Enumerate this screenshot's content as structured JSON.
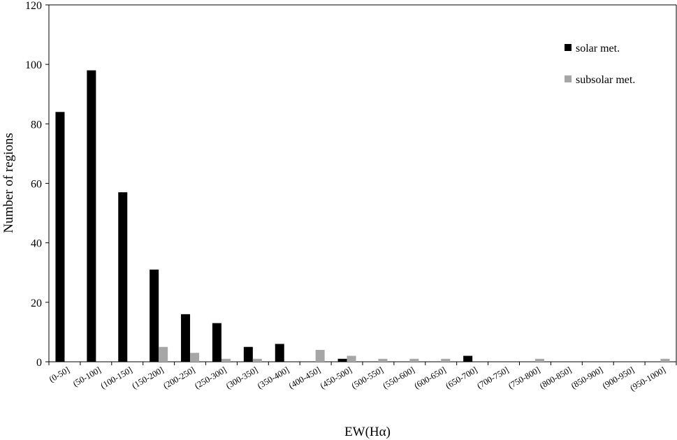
{
  "chart_data": {
    "type": "bar",
    "xlabel": "EW(Hα)",
    "ylabel": "Number of regions",
    "ylim": [
      0,
      120
    ],
    "yticks": [
      0,
      20,
      40,
      60,
      80,
      100,
      120
    ],
    "grid": false,
    "legend_position": "top-right",
    "categories": [
      "(0-50]",
      "(50-100]",
      "(100-150]",
      "(150-200]",
      "(200-250]",
      "(250-300]",
      "(300-350]",
      "(350-400]",
      "(400-450]",
      "(450-500]",
      "(500-550]",
      "(550-600]",
      "(600-650]",
      "(650-700]",
      "(700-750]",
      "(750-800]",
      "(800-850]",
      "(850-900]",
      "(900-950]",
      "(950-1000]"
    ],
    "series": [
      {
        "name": "solar met.",
        "color": "#000000",
        "values": [
          84,
          98,
          57,
          31,
          16,
          13,
          5,
          6,
          0,
          1,
          0,
          0,
          0,
          2,
          0,
          0,
          0,
          0,
          0,
          0
        ]
      },
      {
        "name": "subsolar met.",
        "color": "#a6a6a6",
        "values": [
          0,
          0,
          0,
          5,
          3,
          1,
          1,
          0,
          4,
          2,
          1,
          1,
          1,
          0,
          0,
          1,
          0,
          0,
          0,
          1
        ]
      }
    ]
  }
}
